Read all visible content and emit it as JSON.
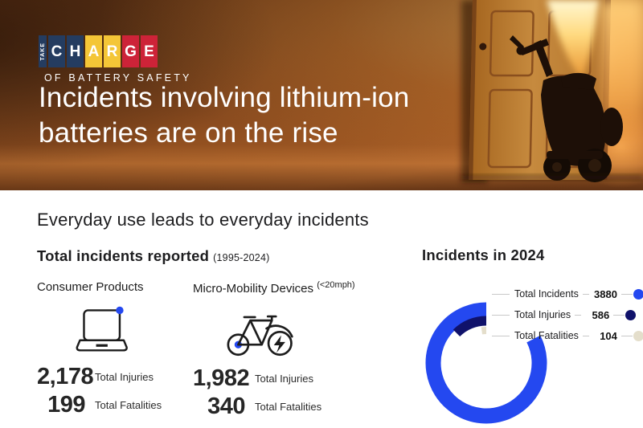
{
  "colors": {
    "accent_blue": "#2448f0",
    "navy": "#10126b",
    "cream": "#e4decb"
  },
  "hero": {
    "logo": {
      "vertical_word": "TAKE",
      "tiles": [
        {
          "ch": "C",
          "bg": "#243c60"
        },
        {
          "ch": "H",
          "bg": "#243c60"
        },
        {
          "ch": "A",
          "bg": "#f4c637"
        },
        {
          "ch": "R",
          "bg": "#f4c637"
        },
        {
          "ch": "G",
          "bg": "#cd2338"
        },
        {
          "ch": "E",
          "bg": "#cd2338"
        }
      ],
      "take_tile_bg": "#243c60",
      "tagline": "OF BATTERY SAFETY"
    },
    "headline_line1": "Incidents involving lithium-ion",
    "headline_line2": "batteries are on the rise"
  },
  "content": {
    "section_title": "Everyday use leads to everyday incidents",
    "totals": {
      "title": "Total incidents reported",
      "period": "(1995-2024)",
      "columns": [
        {
          "label": "Consumer Products",
          "icon": "laptop-icon",
          "stats": [
            {
              "value": "2,178",
              "label": "Total Injuries"
            },
            {
              "value": "199",
              "label": "Total Fatalities"
            }
          ]
        },
        {
          "label": "Micro-Mobility Devices",
          "note": "(<20mph)",
          "icon": "ebike-icon",
          "stats": [
            {
              "value": "1,982",
              "label": "Total Injuries"
            },
            {
              "value": "340",
              "label": "Total Fatalities"
            }
          ]
        }
      ]
    }
  },
  "chart_data": {
    "type": "donut",
    "title": "Incidents in 2024",
    "rings": [
      {
        "label": "Total Incidents",
        "value": 3880,
        "display": "3880",
        "color": "#2448f0"
      },
      {
        "label": "Total Injuries",
        "value": 586,
        "display": "586",
        "color": "#10126b"
      },
      {
        "label": "Total Fatalities",
        "value": 104,
        "display": "104",
        "color": "#e4decb"
      }
    ],
    "start": "top",
    "direction": "counterclockwise",
    "max_sweep_degrees": 297,
    "legend_position": "right"
  }
}
